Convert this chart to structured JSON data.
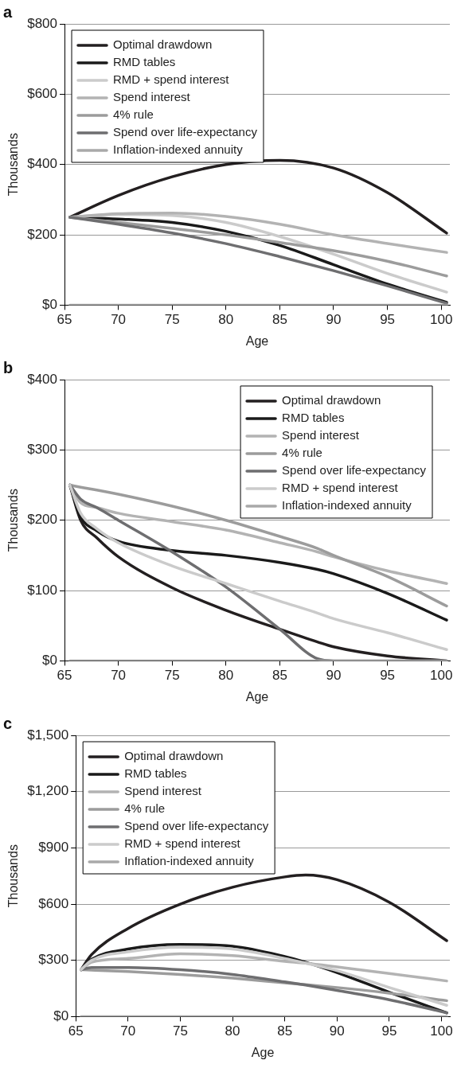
{
  "chart_data": [
    {
      "type": "line",
      "title": "a",
      "xlabel": "Age",
      "ylabel": "Thousands",
      "xlim": [
        65,
        100.8
      ],
      "xticks": [
        65,
        70,
        75,
        80,
        85,
        90,
        95,
        100
      ],
      "ylim": [
        0,
        800
      ],
      "yticks": [
        {
          "value": 0,
          "label": "$0"
        },
        {
          "value": 200,
          "label": "$200"
        },
        {
          "value": 400,
          "label": "$400"
        },
        {
          "value": 600,
          "label": "$600"
        },
        {
          "value": 800,
          "label": "$800"
        }
      ],
      "grid": "y",
      "legend": "top left",
      "marker": "none",
      "line_style": "solid",
      "x": [
        65.5,
        70,
        75,
        80,
        85,
        90,
        95,
        100.5
      ],
      "series": [
        {
          "name": "Optimal drawdown",
          "color": "#231f20",
          "values": [
            250,
            312,
            365,
            400,
            412,
            390,
            320,
            205
          ]
        },
        {
          "name": "RMD tables",
          "color": "#1a1a1a",
          "values": [
            250,
            245,
            235,
            210,
            170,
            115,
            60,
            8
          ]
        },
        {
          "name": "RMD + spend interest",
          "color": "#cbcbcb",
          "values": [
            250,
            258,
            255,
            235,
            195,
            145,
            90,
            37
          ]
        },
        {
          "name": "Spend interest",
          "color": "#b3b3b3",
          "values": [
            250,
            260,
            262,
            252,
            230,
            200,
            175,
            150
          ]
        },
        {
          "name": "4% rule",
          "color": "#9c9c9c",
          "values": [
            250,
            235,
            218,
            200,
            178,
            155,
            125,
            83
          ]
        },
        {
          "name": "Spend over life-expectancy",
          "color": "#6e6e70",
          "values": [
            250,
            230,
            205,
            175,
            138,
            98,
            55,
            5
          ]
        },
        {
          "name": "Inflation-indexed annuity",
          "color": "#a9a9a9",
          "values": [
            0,
            0,
            0,
            0,
            0,
            0,
            0,
            0
          ]
        }
      ]
    },
    {
      "type": "line",
      "title": "b",
      "xlabel": "Age",
      "ylabel": "Thousands",
      "xlim": [
        65,
        100.8
      ],
      "xticks": [
        65,
        70,
        75,
        80,
        85,
        90,
        95,
        100
      ],
      "ylim": [
        0,
        400
      ],
      "yticks": [
        {
          "value": 0,
          "label": "$0"
        },
        {
          "value": 100,
          "label": "$100"
        },
        {
          "value": 200,
          "label": "$200"
        },
        {
          "value": 300,
          "label": "$300"
        },
        {
          "value": 400,
          "label": "$400"
        }
      ],
      "grid": "y",
      "legend": "top right",
      "marker": "none",
      "line_style": "solid",
      "x": [
        65.5,
        66.5,
        68,
        70,
        75,
        80,
        85,
        88.5,
        90,
        95,
        100.5
      ],
      "series": [
        {
          "name": "Optimal drawdown",
          "color": "#231f20",
          "values": [
            250,
            200,
            175,
            148,
            104,
            72,
            45,
            27,
            20,
            7,
            0
          ]
        },
        {
          "name": "RMD tables",
          "color": "#1a1a1a",
          "values": [
            250,
            205,
            185,
            170,
            157,
            150,
            140,
            130,
            124,
            96,
            58
          ]
        },
        {
          "name": "Spend interest",
          "color": "#b3b3b3",
          "values": [
            250,
            225,
            218,
            210,
            198,
            186,
            168,
            155,
            148,
            128,
            110
          ]
        },
        {
          "name": "4% rule",
          "color": "#9c9c9c",
          "values": [
            250,
            247,
            243,
            237,
            220,
            200,
            177,
            160,
            150,
            120,
            78
          ]
        },
        {
          "name": "Spend over life-expectancy",
          "color": "#6e6e70",
          "values": [
            250,
            230,
            218,
            200,
            155,
            105,
            45,
            3,
            0,
            0,
            0
          ]
        },
        {
          "name": "RMD + spend interest",
          "color": "#cbcbcb",
          "values": [
            250,
            210,
            188,
            168,
            135,
            110,
            85,
            68,
            60,
            40,
            16
          ]
        },
        {
          "name": "Inflation-indexed annuity",
          "color": "#a9a9a9",
          "values": [
            0,
            0,
            0,
            0,
            0,
            0,
            0,
            0,
            0,
            0,
            0
          ]
        }
      ]
    },
    {
      "type": "line",
      "title": "c",
      "xlabel": "Age",
      "ylabel": "Thousands",
      "xlim": [
        65,
        100.8
      ],
      "xticks": [
        65,
        70,
        75,
        80,
        85,
        90,
        95,
        100
      ],
      "ylim": [
        0,
        1500
      ],
      "yticks": [
        {
          "value": 0,
          "label": "$0"
        },
        {
          "value": 300,
          "label": "$300"
        },
        {
          "value": 600,
          "label": "$600"
        },
        {
          "value": 900,
          "label": "$900"
        },
        {
          "value": 1200,
          "label": "$1,200"
        },
        {
          "value": 1500,
          "label": "$1,500"
        }
      ],
      "grid": "y",
      "legend": "top left",
      "marker": "none",
      "line_style": "solid",
      "x": [
        65.5,
        66.5,
        70,
        75,
        80,
        85,
        87,
        90,
        95,
        100.5
      ],
      "series": [
        {
          "name": "Optimal drawdown",
          "color": "#231f20",
          "values": [
            250,
            330,
            470,
            600,
            690,
            745,
            755,
            730,
            610,
            405
          ]
        },
        {
          "name": "RMD tables",
          "color": "#1a1a1a",
          "values": [
            250,
            305,
            360,
            385,
            375,
            320,
            290,
            235,
            130,
            20
          ]
        },
        {
          "name": "Spend interest",
          "color": "#b3b3b3",
          "values": [
            250,
            290,
            310,
            335,
            325,
            295,
            285,
            265,
            230,
            190
          ]
        },
        {
          "name": "4% rule",
          "color": "#9c9c9c",
          "values": [
            250,
            248,
            240,
            225,
            205,
            180,
            170,
            155,
            125,
            85
          ]
        },
        {
          "name": "Spend over life-expectancy",
          "color": "#6e6e70",
          "values": [
            250,
            262,
            262,
            250,
            225,
            185,
            168,
            140,
            90,
            20
          ]
        },
        {
          "name": "RMD + spend interest",
          "color": "#cbcbcb",
          "values": [
            250,
            300,
            345,
            370,
            360,
            310,
            285,
            245,
            155,
            60
          ]
        },
        {
          "name": "Inflation-indexed annuity",
          "color": "#a9a9a9",
          "values": [
            0,
            0,
            0,
            0,
            0,
            0,
            0,
            0,
            0,
            0
          ]
        }
      ]
    }
  ]
}
